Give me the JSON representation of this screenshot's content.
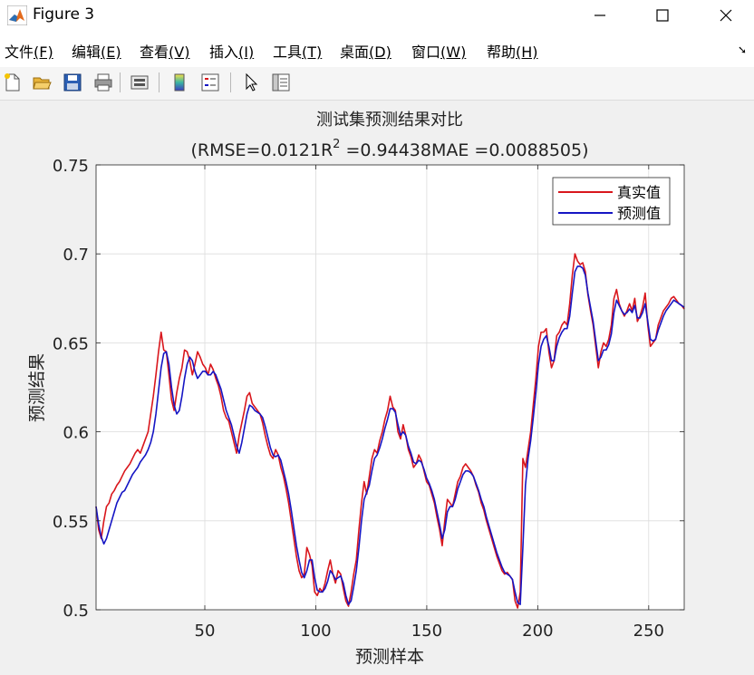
{
  "window": {
    "title": "Figure 3"
  },
  "menu": [
    {
      "label": "文件",
      "key": "(F)"
    },
    {
      "label": "编辑",
      "key": "(E)"
    },
    {
      "label": "查看",
      "key": "(V)"
    },
    {
      "label": "插入",
      "key": "(I)"
    },
    {
      "label": "工具",
      "key": "(T)"
    },
    {
      "label": "桌面",
      "key": "(D)"
    },
    {
      "label": "窗口",
      "key": "(W)"
    },
    {
      "label": "帮助",
      "key": "(H)"
    }
  ],
  "toolbar_icons": [
    "new-figure-icon",
    "open-folder-icon",
    "save-icon",
    "print-icon",
    "link-plot-icon",
    "insert-colorbar-icon",
    "insert-legend-icon",
    "pointer-icon",
    "property-editor-icon"
  ],
  "chart_data": {
    "type": "line",
    "title": "测试集预测结果对比",
    "subtitle_pre": "(RMSE=0.0121R",
    "subtitle_sup": "2",
    "subtitle_post": " =0.94438MAE =0.0088505)",
    "xlabel": "预测样本",
    "ylabel": "预测结果",
    "xlim": [
      1,
      266
    ],
    "ylim": [
      0.5,
      0.75
    ],
    "xticks": [
      50,
      100,
      150,
      200,
      250
    ],
    "yticks": [
      0.5,
      0.55,
      0.6,
      0.65,
      0.7,
      0.75
    ],
    "ytick_labels": [
      "0.5",
      "0.55",
      "0.6",
      "0.65",
      "0.7",
      "0.75"
    ],
    "grid": true,
    "legend_position": "top-right",
    "series": [
      {
        "name": "真实值",
        "color": "#d9161c",
        "values": [
          0.558,
          0.545,
          0.54,
          0.55,
          0.558,
          0.56,
          0.565,
          0.567,
          0.57,
          0.572,
          0.575,
          0.578,
          0.58,
          0.582,
          0.585,
          0.588,
          0.59,
          0.588,
          0.592,
          0.596,
          0.6,
          0.61,
          0.62,
          0.632,
          0.645,
          0.656,
          0.646,
          0.645,
          0.632,
          0.618,
          0.612,
          0.622,
          0.63,
          0.636,
          0.646,
          0.645,
          0.64,
          0.632,
          0.638,
          0.645,
          0.642,
          0.638,
          0.636,
          0.632,
          0.638,
          0.635,
          0.63,
          0.626,
          0.62,
          0.612,
          0.608,
          0.606,
          0.6,
          0.594,
          0.588,
          0.598,
          0.605,
          0.612,
          0.62,
          0.622,
          0.616,
          0.614,
          0.612,
          0.61,
          0.605,
          0.598,
          0.592,
          0.587,
          0.585,
          0.59,
          0.587,
          0.58,
          0.575,
          0.568,
          0.56,
          0.55,
          0.54,
          0.53,
          0.522,
          0.518,
          0.52,
          0.535,
          0.531,
          0.525,
          0.51,
          0.508,
          0.512,
          0.51,
          0.515,
          0.522,
          0.528,
          0.52,
          0.515,
          0.522,
          0.52,
          0.512,
          0.505,
          0.502,
          0.51,
          0.52,
          0.528,
          0.545,
          0.56,
          0.572,
          0.565,
          0.575,
          0.585,
          0.59,
          0.588,
          0.595,
          0.6,
          0.607,
          0.612,
          0.62,
          0.614,
          0.612,
          0.6,
          0.596,
          0.604,
          0.598,
          0.59,
          0.586,
          0.58,
          0.582,
          0.587,
          0.584,
          0.578,
          0.572,
          0.57,
          0.565,
          0.56,
          0.552,
          0.545,
          0.536,
          0.55,
          0.562,
          0.56,
          0.558,
          0.565,
          0.572,
          0.575,
          0.58,
          0.582,
          0.58,
          0.578,
          0.575,
          0.57,
          0.566,
          0.56,
          0.556,
          0.55,
          0.545,
          0.54,
          0.535,
          0.53,
          0.526,
          0.522,
          0.52,
          0.521,
          0.519,
          0.517,
          0.505,
          0.501,
          0.51,
          0.585,
          0.58,
          0.59,
          0.6,
          0.615,
          0.63,
          0.648,
          0.656,
          0.656,
          0.658,
          0.645,
          0.636,
          0.64,
          0.654,
          0.656,
          0.66,
          0.662,
          0.66,
          0.672,
          0.688,
          0.7,
          0.696,
          0.694,
          0.695,
          0.69,
          0.677,
          0.668,
          0.66,
          0.648,
          0.636,
          0.645,
          0.65,
          0.648,
          0.652,
          0.66,
          0.675,
          0.68,
          0.672,
          0.668,
          0.665,
          0.668,
          0.672,
          0.668,
          0.675,
          0.662,
          0.665,
          0.67,
          0.678,
          0.66,
          0.648,
          0.65,
          0.652,
          0.66,
          0.664,
          0.668,
          0.67,
          0.672,
          0.675,
          0.676,
          0.674,
          0.672,
          0.671,
          0.669
        ]
      },
      {
        "name": "预测值",
        "color": "#1515c4",
        "values": [
          0.558,
          0.548,
          0.541,
          0.537,
          0.54,
          0.545,
          0.55,
          0.555,
          0.56,
          0.563,
          0.566,
          0.567,
          0.57,
          0.573,
          0.576,
          0.578,
          0.58,
          0.583,
          0.585,
          0.587,
          0.59,
          0.594,
          0.6,
          0.61,
          0.623,
          0.636,
          0.644,
          0.645,
          0.638,
          0.625,
          0.615,
          0.61,
          0.612,
          0.62,
          0.63,
          0.638,
          0.642,
          0.64,
          0.634,
          0.63,
          0.632,
          0.634,
          0.634,
          0.632,
          0.632,
          0.634,
          0.632,
          0.628,
          0.624,
          0.618,
          0.612,
          0.608,
          0.604,
          0.598,
          0.592,
          0.588,
          0.594,
          0.602,
          0.61,
          0.615,
          0.614,
          0.612,
          0.611,
          0.61,
          0.608,
          0.603,
          0.597,
          0.591,
          0.587,
          0.586,
          0.587,
          0.584,
          0.578,
          0.572,
          0.565,
          0.556,
          0.546,
          0.536,
          0.528,
          0.521,
          0.518,
          0.522,
          0.528,
          0.528,
          0.518,
          0.511,
          0.51,
          0.51,
          0.512,
          0.516,
          0.522,
          0.52,
          0.517,
          0.518,
          0.519,
          0.515,
          0.508,
          0.503,
          0.505,
          0.513,
          0.522,
          0.535,
          0.55,
          0.562,
          0.566,
          0.57,
          0.578,
          0.585,
          0.587,
          0.591,
          0.596,
          0.602,
          0.607,
          0.613,
          0.613,
          0.611,
          0.604,
          0.598,
          0.6,
          0.598,
          0.592,
          0.588,
          0.583,
          0.582,
          0.584,
          0.583,
          0.579,
          0.574,
          0.571,
          0.567,
          0.562,
          0.555,
          0.548,
          0.54,
          0.545,
          0.555,
          0.558,
          0.558,
          0.562,
          0.568,
          0.572,
          0.576,
          0.578,
          0.578,
          0.577,
          0.575,
          0.571,
          0.567,
          0.562,
          0.558,
          0.552,
          0.547,
          0.542,
          0.537,
          0.532,
          0.528,
          0.524,
          0.521,
          0.52,
          0.519,
          0.517,
          0.51,
          0.504,
          0.503,
          0.535,
          0.57,
          0.585,
          0.595,
          0.608,
          0.622,
          0.638,
          0.648,
          0.652,
          0.654,
          0.648,
          0.64,
          0.64,
          0.648,
          0.653,
          0.656,
          0.658,
          0.658,
          0.665,
          0.678,
          0.69,
          0.693,
          0.693,
          0.692,
          0.688,
          0.678,
          0.67,
          0.662,
          0.651,
          0.64,
          0.642,
          0.646,
          0.646,
          0.649,
          0.655,
          0.667,
          0.674,
          0.671,
          0.668,
          0.666,
          0.667,
          0.669,
          0.667,
          0.671,
          0.664,
          0.664,
          0.667,
          0.672,
          0.662,
          0.652,
          0.651,
          0.652,
          0.657,
          0.661,
          0.665,
          0.668,
          0.67,
          0.672,
          0.674,
          0.673,
          0.672,
          0.671,
          0.67
        ]
      }
    ]
  }
}
